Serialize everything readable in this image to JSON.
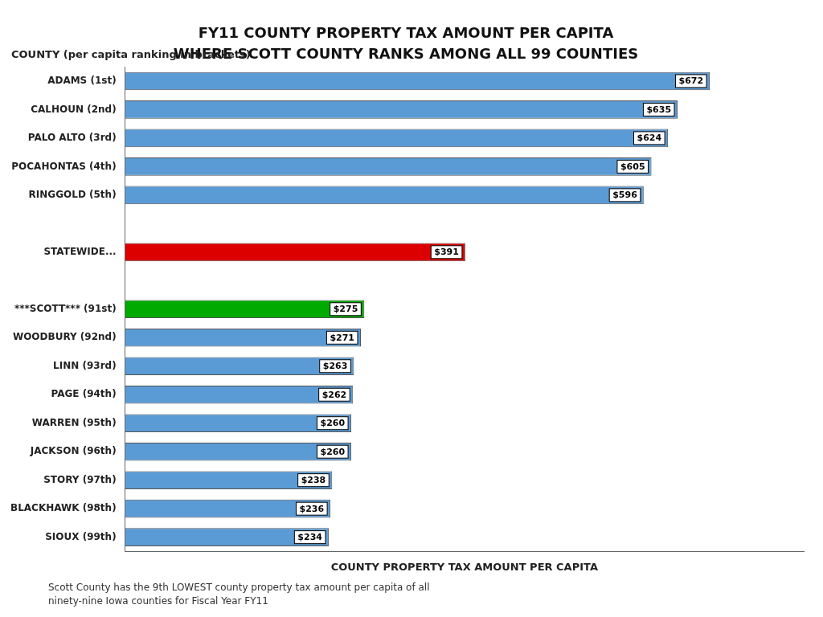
{
  "chart_data": {
    "type": "bar",
    "orientation": "horizontal",
    "title": "FY11 COUNTY PROPERTY TAX AMOUNT PER CAPITA",
    "subtitle": "WHERE SCOTT COUNTY RANKS AMONG ALL 99 COUNTIES",
    "xlabel": "COUNTY PROPERTY TAX AMOUNT PER CAPITA",
    "categories": [
      "ADAMS (1st)",
      "CALHOUN (2nd)",
      "PALO ALTO (3rd)",
      "POCAHONTAS (4th)",
      "RINGGOLD (5th)",
      null,
      "STATEWIDE...",
      null,
      "***SCOTT*** (91st)",
      "WOODBURY (92nd)",
      "LINN (93rd)",
      "PAGE (94th)",
      "WARREN (95th)",
      "JACKSON (96th)",
      "STORY (97th)",
      "BLACKHAWK (98th)",
      "SIOUX (99th)"
    ],
    "values": [
      672,
      635,
      624,
      605,
      596,
      null,
      391,
      null,
      275,
      271,
      263,
      262,
      260,
      260,
      238,
      236,
      234
    ],
    "value_labels": [
      "$672",
      "$635",
      "$624",
      "$605",
      "$596",
      null,
      "$391",
      null,
      "$275",
      "$271",
      "$263",
      "$262",
      "$260",
      "$260",
      "$238",
      "$236",
      "$234"
    ],
    "colors": [
      "#5b9bd5",
      "#5b9bd5",
      "#5b9bd5",
      "#5b9bd5",
      "#5b9bd5",
      null,
      "#dd0000",
      null,
      "#00aa00",
      "#5b9bd5",
      "#5b9bd5",
      "#5b9bd5",
      "#5b9bd5",
      "#5b9bd5",
      "#5b9bd5",
      "#5b9bd5",
      "#5b9bd5"
    ],
    "xlim": [
      0,
      780
    ],
    "grid": false,
    "data_labels": true,
    "tick_labels": "y",
    "annotations": [
      "COUNTY (per capita ranking in brackets)",
      "Scott County has the 9th LOWEST county property tax amount per capita of all",
      "ninety-nine Iowa counties for Fiscal Year FY11"
    ]
  }
}
